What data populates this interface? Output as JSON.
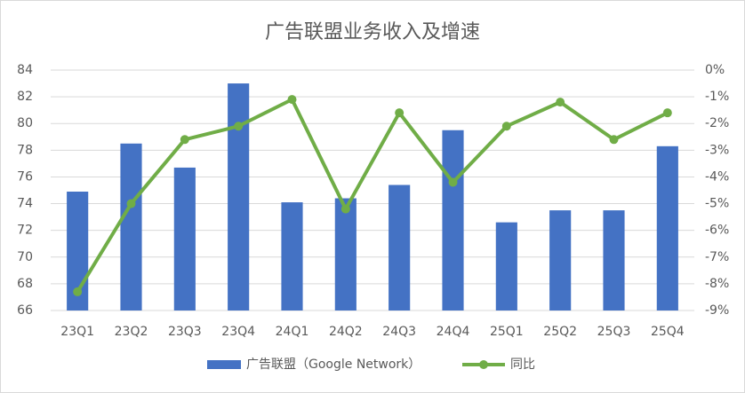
{
  "chart_data": {
    "type": "bar_line",
    "title": "广告联盟业务收入及增速",
    "categories": [
      "23Q1",
      "23Q2",
      "23Q3",
      "23Q4",
      "24Q1",
      "24Q2",
      "24Q3",
      "24Q4",
      "25Q1",
      "25Q2",
      "25Q3",
      "25Q4"
    ],
    "series": [
      {
        "name": "广告联盟（Google Network）",
        "type": "bar",
        "color": "#4472c4",
        "values": [
          74.9,
          78.5,
          76.7,
          83.0,
          74.1,
          74.4,
          75.4,
          79.5,
          72.6,
          73.5,
          73.5,
          78.3
        ]
      },
      {
        "name": "同比",
        "type": "line",
        "axis": "y2",
        "color": "#70ad47",
        "values": [
          -8.3,
          -5.0,
          -2.6,
          -2.1,
          -1.1,
          -5.2,
          -1.6,
          -4.2,
          -2.1,
          -1.2,
          -2.6,
          -1.6
        ]
      }
    ],
    "ylim": [
      66,
      84
    ],
    "yticks": [
      66,
      68,
      70,
      72,
      74,
      76,
      78,
      80,
      82,
      84
    ],
    "y2lim": [
      -9,
      0
    ],
    "y2ticks": [
      {
        "value": -9,
        "label": "-9%"
      },
      {
        "value": -8,
        "label": "-8%"
      },
      {
        "value": -7,
        "label": "-7%"
      },
      {
        "value": -6,
        "label": "-6%"
      },
      {
        "value": -5,
        "label": "-5%"
      },
      {
        "value": -4,
        "label": "-4%"
      },
      {
        "value": -3,
        "label": "-3%"
      },
      {
        "value": -2,
        "label": "-2%"
      },
      {
        "value": -1,
        "label": "-1%"
      },
      {
        "value": 0,
        "label": "0%"
      }
    ],
    "grid": true,
    "legend": "bottom"
  }
}
